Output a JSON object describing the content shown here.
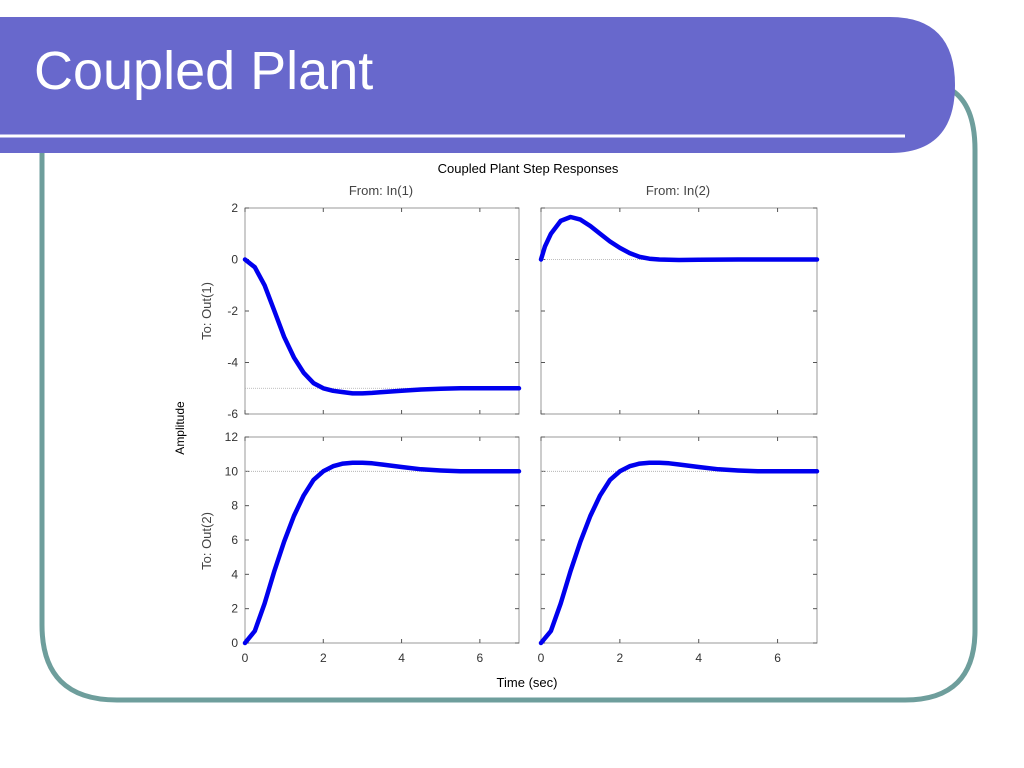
{
  "slide": {
    "title": "Coupled Plant",
    "colors": {
      "banner": "#6868cc",
      "frame": "#6e9e9c",
      "title_text": "#ffffff",
      "rule": "#ffffff"
    }
  },
  "chart_data": {
    "type": "line",
    "title": "Coupled Plant Step Responses",
    "xlabel": "Time (sec)",
    "ylabel": "Amplitude",
    "grid": false,
    "line_color": "#0000ee",
    "column_titles": [
      "From: In(1)",
      "From: In(2)"
    ],
    "row_titles": [
      "To: Out(1)",
      "To: Out(2)"
    ],
    "xlim": [
      0,
      7
    ],
    "xticks": [
      "0",
      "2",
      "4",
      "6"
    ],
    "rows": [
      {
        "ylim": [
          -6,
          2
        ],
        "yticks": [
          "2",
          "0",
          "-2",
          "-4",
          "-6"
        ],
        "steady_state": [
          -5,
          0
        ]
      },
      {
        "ylim": [
          0,
          12
        ],
        "yticks": [
          "12",
          "10",
          "8",
          "6",
          "4",
          "2",
          "0"
        ],
        "steady_state": [
          10,
          10
        ]
      }
    ],
    "panels": [
      {
        "row": 0,
        "col": 0,
        "x": [
          0,
          0.25,
          0.5,
          0.75,
          1.0,
          1.25,
          1.5,
          1.75,
          2.0,
          2.25,
          2.5,
          2.75,
          3.0,
          3.25,
          3.5,
          4.0,
          4.5,
          5.0,
          5.5,
          6.0,
          7.0
        ],
        "y": [
          0,
          -0.3,
          -1.0,
          -2.0,
          -3.0,
          -3.8,
          -4.4,
          -4.8,
          -5.0,
          -5.1,
          -5.15,
          -5.2,
          -5.2,
          -5.18,
          -5.15,
          -5.1,
          -5.05,
          -5.02,
          -5.0,
          -5.0,
          -5.0
        ]
      },
      {
        "row": 0,
        "col": 1,
        "x": [
          0,
          0.1,
          0.25,
          0.5,
          0.75,
          1.0,
          1.25,
          1.5,
          1.75,
          2.0,
          2.25,
          2.5,
          2.75,
          3.0,
          3.5,
          4.0,
          5.0,
          6.0,
          7.0
        ],
        "y": [
          0,
          0.5,
          1.0,
          1.5,
          1.65,
          1.55,
          1.3,
          1.0,
          0.7,
          0.45,
          0.25,
          0.1,
          0.03,
          0.0,
          -0.02,
          -0.01,
          0.0,
          0.0,
          0.0
        ]
      },
      {
        "row": 1,
        "col": 0,
        "x": [
          0,
          0.25,
          0.5,
          0.75,
          1.0,
          1.25,
          1.5,
          1.75,
          2.0,
          2.25,
          2.5,
          2.75,
          3.0,
          3.25,
          3.5,
          4.0,
          4.5,
          5.0,
          5.5,
          6.0,
          7.0
        ],
        "y": [
          0,
          0.7,
          2.3,
          4.2,
          5.9,
          7.4,
          8.6,
          9.5,
          10.0,
          10.3,
          10.45,
          10.5,
          10.5,
          10.47,
          10.4,
          10.25,
          10.12,
          10.05,
          10.0,
          10.0,
          10.0
        ]
      },
      {
        "row": 1,
        "col": 1,
        "x": [
          0,
          0.25,
          0.5,
          0.75,
          1.0,
          1.25,
          1.5,
          1.75,
          2.0,
          2.25,
          2.5,
          2.75,
          3.0,
          3.25,
          3.5,
          4.0,
          4.5,
          5.0,
          5.5,
          6.0,
          7.0
        ],
        "y": [
          0,
          0.7,
          2.3,
          4.2,
          5.9,
          7.4,
          8.6,
          9.5,
          10.0,
          10.3,
          10.45,
          10.5,
          10.5,
          10.47,
          10.4,
          10.25,
          10.12,
          10.05,
          10.0,
          10.0,
          10.0
        ]
      }
    ]
  }
}
